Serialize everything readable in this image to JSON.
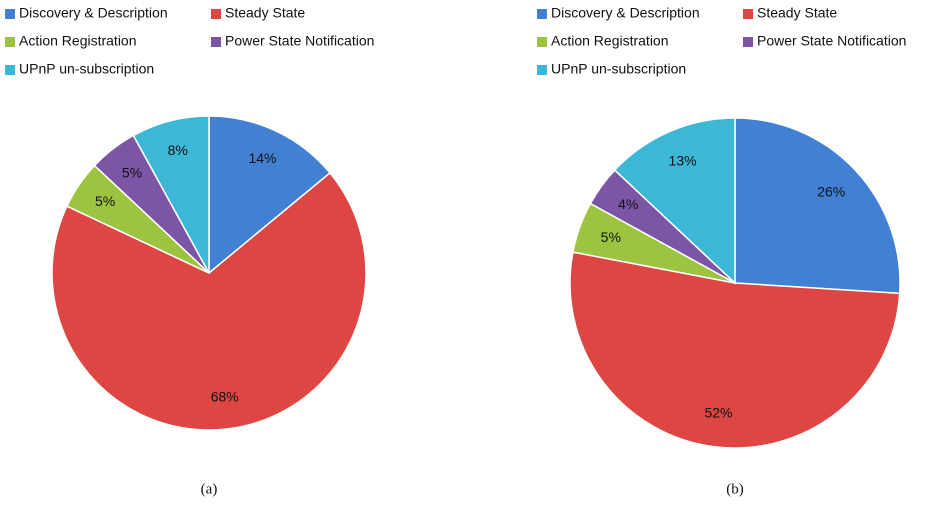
{
  "chart_data": [
    {
      "type": "pie",
      "caption": "(a)",
      "categories": [
        "Discovery & Description",
        "Steady State",
        "Action Registration",
        "Power State Notification",
        "UPnP un-subscription"
      ],
      "values": [
        14,
        68,
        5,
        5,
        8
      ],
      "value_labels": [
        "14%",
        "68%",
        "5%",
        "5%",
        "8%"
      ],
      "colors": [
        "#4280d4",
        "#de4643",
        "#9cc440",
        "#7d55a6",
        "#3db7d6"
      ]
    },
    {
      "type": "pie",
      "caption": "(b)",
      "categories": [
        "Discovery & Description",
        "Steady State",
        "Action Registration",
        "Power State Notification",
        "UPnP un-subscription"
      ],
      "values": [
        26,
        52,
        5,
        4,
        13
      ],
      "value_labels": [
        "26%",
        "52%",
        "5%",
        "4%",
        "13%"
      ],
      "colors": [
        "#4280d4",
        "#de4643",
        "#9cc440",
        "#7d55a6",
        "#3db7d6"
      ]
    }
  ]
}
